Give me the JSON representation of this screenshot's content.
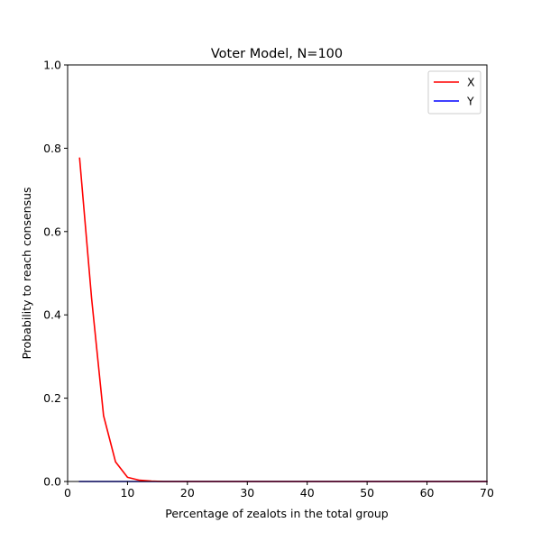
{
  "chart_data": {
    "type": "line",
    "title": "Voter Model, N=100",
    "xlabel": "Percentage of zealots in the total group",
    "ylabel": "Probability to reach consensus",
    "xlim": [
      0,
      70
    ],
    "ylim": [
      0,
      1.0
    ],
    "xticks": [
      "0",
      "10",
      "20",
      "30",
      "40",
      "50",
      "60",
      "70"
    ],
    "yticks": [
      "0.0",
      "0.2",
      "0.4",
      "0.6",
      "0.8",
      "1.0"
    ],
    "grid": false,
    "legend_position": "top-right",
    "series": [
      {
        "name": "X",
        "color": "#ff0000",
        "x": [
          2,
          4,
          6,
          8,
          10,
          12,
          14,
          16,
          18,
          20,
          22,
          24,
          26,
          28,
          30,
          32,
          34,
          36,
          38,
          40,
          42,
          44,
          46,
          48,
          50,
          52,
          54,
          56,
          58,
          60,
          62,
          64,
          66,
          68,
          70
        ],
        "y": [
          0.776,
          0.44,
          0.158,
          0.047,
          0.01,
          0.003,
          0.001,
          0,
          0,
          0,
          0,
          0,
          0,
          0,
          0,
          0,
          0,
          0,
          0,
          0,
          0,
          0,
          0,
          0,
          0,
          0,
          0,
          0,
          0,
          0,
          0,
          0,
          0,
          0,
          0
        ]
      },
      {
        "name": "Y",
        "color": "#0000ff",
        "x": [
          2,
          4,
          6,
          8,
          10,
          12,
          14,
          16,
          18,
          20,
          22,
          24,
          26,
          28,
          30,
          32,
          34,
          36,
          38,
          40,
          42,
          44,
          46,
          48,
          50,
          52,
          54,
          56,
          58,
          60,
          62,
          64,
          66,
          68,
          70
        ],
        "y": [
          0,
          0,
          0,
          0,
          0,
          0,
          0,
          0,
          0,
          0,
          0,
          0,
          0,
          0,
          0,
          0,
          0,
          0,
          0,
          0,
          0,
          0,
          0,
          0,
          0,
          0,
          0,
          0,
          0,
          0,
          0,
          0,
          0,
          0,
          0
        ]
      }
    ]
  }
}
